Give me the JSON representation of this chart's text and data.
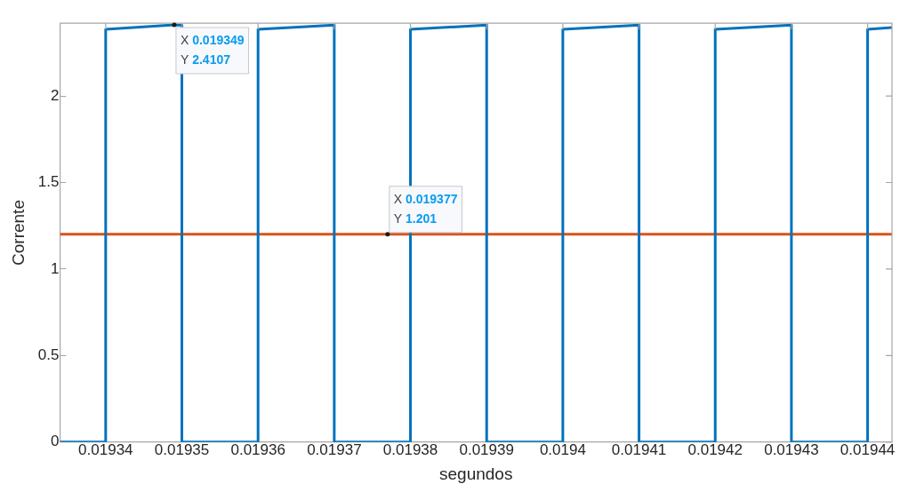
{
  "chart_data": {
    "type": "line",
    "xlabel": "segundos",
    "ylabel": "Corrente",
    "xlim": [
      0.019334,
      0.0194432
    ],
    "ylim": [
      0,
      2.42
    ],
    "xticks": [
      0.01934,
      0.01935,
      0.01936,
      0.01937,
      0.01938,
      0.01939,
      0.0194,
      0.01941,
      0.01942,
      0.01943,
      0.01944
    ],
    "yticks": [
      0,
      0.5,
      1,
      1.5,
      2
    ],
    "grid": false,
    "legend": false,
    "marker": "none",
    "line_style": "solid",
    "series": [
      {
        "color": "#0072bd",
        "x": [
          0.019334,
          0.01934,
          0.01934,
          0.019349,
          0.01935,
          0.01935,
          0.01936,
          0.01936,
          0.01937,
          0.01937,
          0.01938,
          0.01938,
          0.01939,
          0.01939,
          0.0194,
          0.0194,
          0.01941,
          0.01941,
          0.01942,
          0.01942,
          0.01943,
          0.01943,
          0.01944,
          0.01944,
          0.0194432
        ],
        "values": [
          0,
          0,
          2.385,
          2.4107,
          2.41,
          0,
          0,
          2.385,
          2.41,
          0,
          0,
          2.385,
          2.41,
          0,
          0,
          2.385,
          2.41,
          0,
          0,
          2.385,
          2.41,
          0,
          0,
          2.385,
          2.395
        ]
      },
      {
        "color": "#d95319",
        "x": [
          0.019334,
          0.0194432
        ],
        "values": [
          1.201,
          1.201
        ]
      }
    ],
    "annotations": [
      {
        "text": "X 0.019349\nY 2.4107",
        "x": 0.019349,
        "y": 2.4107
      },
      {
        "text": "X 0.019377\nY 1.201",
        "x": 0.019377,
        "y": 1.201
      }
    ]
  }
}
